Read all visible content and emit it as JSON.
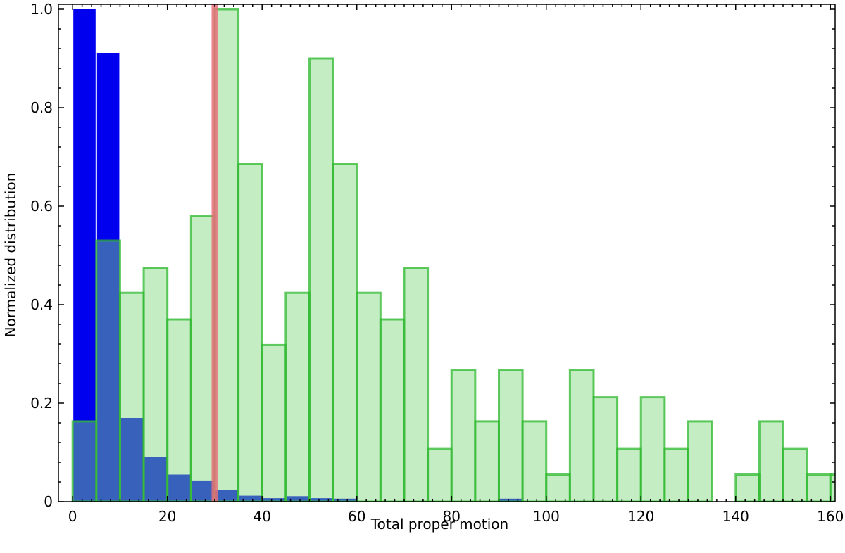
{
  "chart_data": {
    "type": "bar",
    "title": "",
    "xlabel": "Total proper motion",
    "ylabel": "Normalized distribution",
    "xlim": [
      -3,
      161
    ],
    "ylim": [
      0,
      1.01
    ],
    "bin_width": 5,
    "x_ticks": [
      0,
      20,
      40,
      60,
      80,
      100,
      120,
      140,
      160
    ],
    "x_tick_labels": [
      "0",
      "20",
      "40",
      "60",
      "80",
      "100",
      "120",
      "140",
      "160"
    ],
    "y_ticks": [
      0,
      0.2,
      0.4,
      0.6,
      0.8,
      1.0
    ],
    "y_tick_labels": [
      "0",
      "0.2",
      "0.4",
      "0.6",
      "0.8",
      "1.0"
    ],
    "grid": false,
    "legend": "none",
    "vertical_line": {
      "x": 30,
      "color": "#e8707a"
    },
    "series": [
      {
        "color": "#0000ee",
        "bin_starts": [
          0,
          5,
          10,
          15,
          20,
          25,
          30,
          35,
          40,
          45,
          50,
          55,
          90
        ],
        "values": [
          1.0,
          0.91,
          0.17,
          0.09,
          0.055,
          0.043,
          0.024,
          0.012,
          0.007,
          0.011,
          0.007,
          0.006,
          0.006
        ]
      },
      {
        "fill": "#7dd87d",
        "edge": "#2eb82e",
        "bin_starts": [
          0,
          5,
          10,
          15,
          20,
          25,
          30,
          35,
          40,
          45,
          50,
          55,
          60,
          65,
          70,
          75,
          80,
          85,
          90,
          95,
          100,
          105,
          110,
          115,
          120,
          125,
          130,
          140,
          145,
          150,
          155,
          160
        ],
        "values": [
          0.163,
          0.53,
          0.424,
          0.475,
          0.37,
          0.58,
          1.0,
          0.686,
          0.318,
          0.424,
          0.9,
          0.686,
          0.424,
          0.37,
          0.475,
          0.107,
          0.267,
          0.163,
          0.267,
          0.163,
          0.055,
          0.267,
          0.212,
          0.107,
          0.212,
          0.107,
          0.163,
          0.055,
          0.163,
          0.107,
          0.055,
          0.055
        ]
      }
    ]
  }
}
